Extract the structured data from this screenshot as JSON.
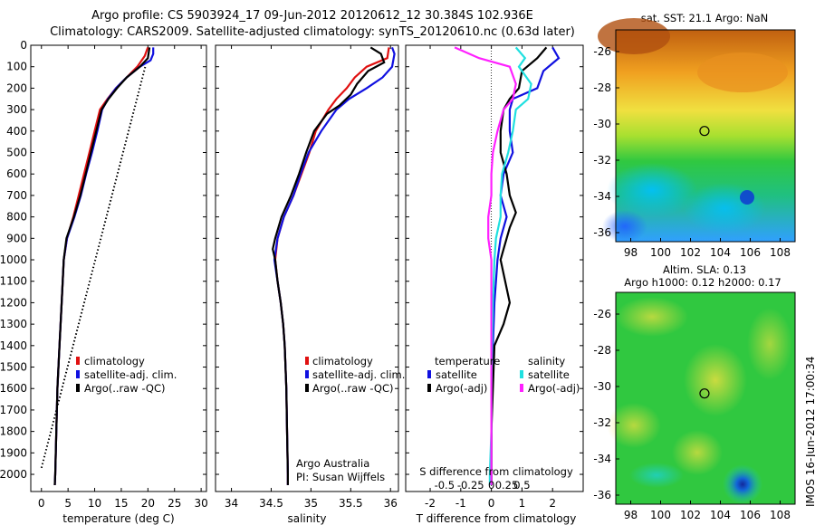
{
  "header": {
    "title_line1": "Argo profile: CS 5903924_17 09-Jun-2012 20120612_12 30.384S 102.936E",
    "title_line2": "Climatology: CARS2009. Satellite-adjusted climatology: synTS_20120610.nc (0.63d later)"
  },
  "watermark": "IMOS 16-Jun-2012 17:00:34",
  "colors": {
    "climatology": "#e01010",
    "satellite": "#1010e0",
    "argo": "#000000",
    "salinity_satellite": "#20e0e0",
    "salinity_argo": "#ff20ff"
  },
  "chart_data": [
    {
      "type": "line",
      "panel": "temperature",
      "xlabel": "temperature (deg C)",
      "ylabel": "",
      "xlim": [
        -2,
        31
      ],
      "ylim": [
        2080,
        0
      ],
      "y_reversed": true,
      "x_ticks": [
        0,
        5,
        10,
        15,
        20,
        25,
        30
      ],
      "y_ticks": [
        0,
        100,
        200,
        300,
        400,
        500,
        600,
        700,
        800,
        900,
        1000,
        1100,
        1200,
        1300,
        1400,
        1500,
        1600,
        1700,
        1800,
        1900,
        2000
      ],
      "legend": [
        "climatology",
        "satellite-adj. clim.",
        "Argo(..raw -QC)"
      ],
      "series": [
        {
          "name": "climatology",
          "color": "#e01010",
          "points": [
            [
              20,
              10
            ],
            [
              19.4,
              50
            ],
            [
              18,
              100
            ],
            [
              16,
              150
            ],
            [
              14,
              200
            ],
            [
              12.4,
              250
            ],
            [
              11,
              300
            ],
            [
              10,
              400
            ],
            [
              9,
              500
            ],
            [
              8,
              600
            ],
            [
              7,
              700
            ],
            [
              6,
              800
            ],
            [
              4.8,
              900
            ],
            [
              4.2,
              1000
            ],
            [
              3.8,
              1200
            ],
            [
              3.4,
              1400
            ],
            [
              3,
              1600
            ],
            [
              2.8,
              1800
            ],
            [
              2.6,
              2000
            ],
            [
              2.5,
              2050
            ]
          ]
        },
        {
          "name": "satellite-adj. clim.",
          "color": "#1010e0",
          "points": [
            [
              21,
              10
            ],
            [
              21,
              40
            ],
            [
              20.5,
              70
            ],
            [
              18.5,
              100
            ],
            [
              16,
              150
            ],
            [
              14,
              200
            ],
            [
              12.5,
              250
            ],
            [
              11.4,
              300
            ],
            [
              10.5,
              400
            ],
            [
              9.5,
              500
            ],
            [
              8.4,
              600
            ],
            [
              7.4,
              700
            ],
            [
              6.2,
              800
            ],
            [
              4.8,
              900
            ],
            [
              4.2,
              1000
            ],
            [
              3.8,
              1200
            ],
            [
              3.4,
              1400
            ],
            [
              3,
              1600
            ],
            [
              2.8,
              1800
            ],
            [
              2.6,
              2000
            ],
            [
              2.5,
              2050
            ]
          ]
        },
        {
          "name": "Argo(..raw -QC)",
          "color": "#000000",
          "points": [
            [
              20.3,
              10
            ],
            [
              20,
              60
            ],
            [
              18.5,
              100
            ],
            [
              16,
              150
            ],
            [
              14.2,
              200
            ],
            [
              12.6,
              250
            ],
            [
              11.3,
              300
            ],
            [
              10.3,
              400
            ],
            [
              9.3,
              500
            ],
            [
              8.3,
              600
            ],
            [
              7.3,
              700
            ],
            [
              6.1,
              800
            ],
            [
              4.7,
              900
            ],
            [
              4.2,
              1000
            ],
            [
              3.8,
              1200
            ],
            [
              3.4,
              1400
            ],
            [
              3,
              1600
            ],
            [
              2.8,
              1800
            ],
            [
              2.6,
              2000
            ],
            [
              2.5,
              2050
            ]
          ]
        },
        {
          "name": "",
          "color": "#000000",
          "dotted": true,
          "points": [
            [
              0,
              1970
            ],
            [
              19.5,
              100
            ]
          ]
        }
      ]
    },
    {
      "type": "line",
      "panel": "salinity",
      "xlabel": "salinity",
      "ylabel": "",
      "xlim": [
        33.8,
        36.1
      ],
      "ylim": [
        2080,
        0
      ],
      "y_reversed": true,
      "x_ticks": [
        34,
        34.5,
        35,
        35.5,
        36
      ],
      "legend": [
        "climatology",
        "satellite-adj. clim.",
        "Argo(..raw -QC)"
      ],
      "annotations": [
        "Argo Australia",
        "PI: Susan Wijffels"
      ],
      "series": [
        {
          "name": "climatology",
          "color": "#e01010",
          "points": [
            [
              35.98,
              10
            ],
            [
              35.96,
              60
            ],
            [
              35.7,
              100
            ],
            [
              35.55,
              150
            ],
            [
              35.45,
              200
            ],
            [
              35.32,
              250
            ],
            [
              35.22,
              300
            ],
            [
              35.06,
              400
            ],
            [
              34.98,
              500
            ],
            [
              34.88,
              600
            ],
            [
              34.78,
              700
            ],
            [
              34.66,
              800
            ],
            [
              34.58,
              900
            ],
            [
              34.55,
              1000
            ],
            [
              34.58,
              1100
            ],
            [
              34.62,
              1200
            ],
            [
              34.65,
              1300
            ],
            [
              34.67,
              1400
            ],
            [
              34.69,
              1600
            ],
            [
              34.7,
              1800
            ],
            [
              34.71,
              2000
            ],
            [
              34.71,
              2050
            ]
          ]
        },
        {
          "name": "satellite-adj. clim.",
          "color": "#1010e0",
          "points": [
            [
              36.02,
              10
            ],
            [
              36.05,
              40
            ],
            [
              36.02,
              100
            ],
            [
              35.9,
              150
            ],
            [
              35.7,
              200
            ],
            [
              35.48,
              250
            ],
            [
              35.32,
              300
            ],
            [
              35.13,
              400
            ],
            [
              34.97,
              500
            ],
            [
              34.87,
              600
            ],
            [
              34.78,
              700
            ],
            [
              34.66,
              800
            ],
            [
              34.58,
              900
            ],
            [
              34.54,
              1000
            ],
            [
              34.58,
              1100
            ],
            [
              34.62,
              1200
            ],
            [
              34.65,
              1300
            ],
            [
              34.67,
              1400
            ],
            [
              34.69,
              1600
            ],
            [
              34.7,
              1800
            ],
            [
              34.71,
              2000
            ],
            [
              34.71,
              2050
            ]
          ]
        },
        {
          "name": "Argo(..raw -QC)",
          "color": "#000000",
          "points": [
            [
              35.75,
              10
            ],
            [
              35.88,
              40
            ],
            [
              35.92,
              80
            ],
            [
              35.72,
              120
            ],
            [
              35.58,
              180
            ],
            [
              35.5,
              230
            ],
            [
              35.36,
              280
            ],
            [
              35.2,
              320
            ],
            [
              35.04,
              400
            ],
            [
              34.94,
              500
            ],
            [
              34.85,
              600
            ],
            [
              34.75,
              700
            ],
            [
              34.63,
              800
            ],
            [
              34.55,
              900
            ],
            [
              34.52,
              950
            ],
            [
              34.55,
              1000
            ],
            [
              34.58,
              1100
            ],
            [
              34.62,
              1200
            ],
            [
              34.65,
              1300
            ],
            [
              34.67,
              1400
            ],
            [
              34.69,
              1600
            ],
            [
              34.7,
              1800
            ],
            [
              34.71,
              2000
            ],
            [
              34.71,
              2050
            ]
          ]
        }
      ]
    },
    {
      "type": "line",
      "panel": "difference",
      "xlabel": "T difference from climatology",
      "xlabel_top": "S difference from climatology",
      "ylabel": "",
      "xlim": [
        -2.8,
        3.0
      ],
      "ylim": [
        2080,
        0
      ],
      "y_reversed": true,
      "x_ticks": [
        -2,
        -1,
        0,
        1,
        2
      ],
      "x_ticks_s": [
        "-0.5",
        "-0.25",
        "0",
        "0.25",
        "0.5"
      ],
      "legend_temperature_title": "temperature",
      "legend_salinity_title": "salinity",
      "legend": [
        "satellite",
        "Argo(-adj)",
        "satellite",
        "Argo(-adj)"
      ],
      "series": [
        {
          "name": "satellite",
          "color": "#1010e0",
          "points": [
            [
              2.0,
              10
            ],
            [
              2.2,
              60
            ],
            [
              1.7,
              120
            ],
            [
              1.5,
              200
            ],
            [
              0.7,
              250
            ],
            [
              0.6,
              300
            ],
            [
              0.6,
              400
            ],
            [
              0.7,
              500
            ],
            [
              0.4,
              600
            ],
            [
              0.3,
              700
            ],
            [
              0.5,
              800
            ],
            [
              0.3,
              900
            ],
            [
              0.2,
              1000
            ],
            [
              0.1,
              1200
            ],
            [
              0.05,
              1400
            ],
            [
              0.0,
              1600
            ],
            [
              0.0,
              1800
            ],
            [
              0.0,
              2000
            ],
            [
              0.0,
              2050
            ]
          ]
        },
        {
          "name": "Argo(-adj)",
          "color": "#000000",
          "points": [
            [
              1.8,
              10
            ],
            [
              1.5,
              60
            ],
            [
              1.0,
              120
            ],
            [
              0.9,
              200
            ],
            [
              0.6,
              250
            ],
            [
              0.4,
              300
            ],
            [
              0.3,
              400
            ],
            [
              0.3,
              500
            ],
            [
              0.5,
              600
            ],
            [
              0.6,
              700
            ],
            [
              0.8,
              780
            ],
            [
              0.6,
              850
            ],
            [
              0.4,
              950
            ],
            [
              0.3,
              1000
            ],
            [
              0.6,
              1200
            ],
            [
              0.4,
              1300
            ],
            [
              0.1,
              1400
            ],
            [
              0.05,
              1600
            ],
            [
              0.0,
              1800
            ],
            [
              0.0,
              2000
            ],
            [
              0.0,
              2050
            ]
          ]
        },
        {
          "name": "satellite",
          "color": "#20e0e0",
          "points": [
            [
              0.8,
              10
            ],
            [
              1.1,
              60
            ],
            [
              0.9,
              100
            ],
            [
              1.3,
              180
            ],
            [
              1.2,
              250
            ],
            [
              0.8,
              300
            ],
            [
              0.7,
              400
            ],
            [
              0.55,
              500
            ],
            [
              0.35,
              600
            ],
            [
              0.3,
              700
            ],
            [
              0.3,
              800
            ],
            [
              0.15,
              900
            ],
            [
              0.1,
              1000
            ],
            [
              0.05,
              1200
            ],
            [
              0.02,
              1400
            ],
            [
              0.0,
              1600
            ],
            [
              0.0,
              1800
            ],
            [
              -0.05,
              2000
            ],
            [
              -0.05,
              2050
            ]
          ]
        },
        {
          "name": "Argo(-adj)",
          "color": "#ff20ff",
          "points": [
            [
              -1.2,
              10
            ],
            [
              -0.4,
              60
            ],
            [
              0.6,
              100
            ],
            [
              0.8,
              180
            ],
            [
              0.7,
              250
            ],
            [
              0.4,
              300
            ],
            [
              0.2,
              400
            ],
            [
              0.05,
              500
            ],
            [
              0.0,
              600
            ],
            [
              0.0,
              700
            ],
            [
              -0.1,
              800
            ],
            [
              -0.1,
              900
            ],
            [
              0.0,
              1000
            ],
            [
              0.0,
              1200
            ],
            [
              0.0,
              1400
            ],
            [
              0.0,
              1600
            ],
            [
              0.0,
              1800
            ],
            [
              0.0,
              2000
            ],
            [
              0.0,
              2050
            ]
          ]
        }
      ]
    },
    {
      "type": "heatmap",
      "panel": "sst_map",
      "title": "sat. SST: 21.1  Argo: NaN",
      "x_ticks": [
        "98",
        "100",
        "102",
        "104",
        "106",
        "108"
      ],
      "y_ticks": [
        "-26",
        "-28",
        "-30",
        "-32",
        "-34",
        "-36"
      ],
      "xlim": [
        97,
        109
      ],
      "ylim": [
        -36.5,
        -24.8
      ],
      "marker": [
        102.936,
        -30.384
      ]
    },
    {
      "type": "heatmap",
      "panel": "sla_map",
      "title_line1": "Altim. SLA: 0.13",
      "title_line2": "Argo h1000: 0.12 h2000: 0.17",
      "x_ticks": [
        "98",
        "100",
        "102",
        "104",
        "106",
        "108"
      ],
      "y_ticks": [
        "-26",
        "-28",
        "-30",
        "-32",
        "-34",
        "-36"
      ],
      "xlim": [
        97,
        109
      ],
      "ylim": [
        -36.5,
        -24.8
      ],
      "marker": [
        102.936,
        -30.384
      ]
    }
  ]
}
